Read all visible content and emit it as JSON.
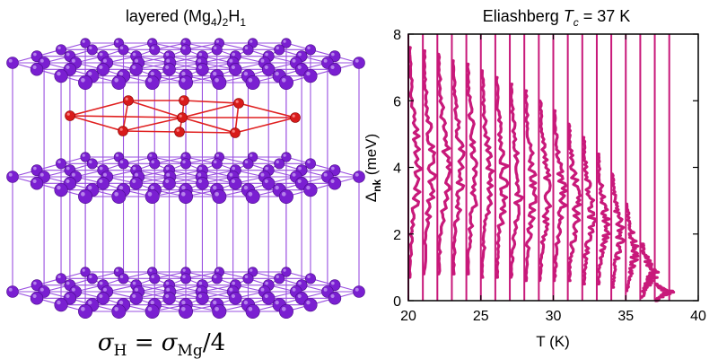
{
  "left_panel": {
    "title": {
      "prefix": "layered (Mg",
      "sub1": "4",
      "mid": ")",
      "sub2": "2",
      "mid2": "H",
      "sub3": "1"
    },
    "formula": {
      "sigma": "σ",
      "h_sub": "H",
      "equals": " = σ",
      "mg_sub": "Mg",
      "tail": "/4"
    },
    "colors": {
      "mg_atom": "#7a1fd1",
      "mg_bond": "#9a4fe0",
      "h_atom": "#d81b1b",
      "h_bond": "#e02020"
    }
  },
  "chart_data": {
    "type": "line",
    "title_prefix": "Eliashberg ",
    "title_var": "T",
    "title_sub": "c",
    "title_suffix": " = 37 K",
    "xlabel": "T (K)",
    "ylabel_main": "Δ",
    "ylabel_sub": "nk",
    "ylabel_unit": " (meV)",
    "xlim": [
      20,
      40
    ],
    "ylim": [
      0,
      8
    ],
    "xticks": [
      "20",
      "25",
      "30",
      "35",
      "40"
    ],
    "xtick_values": [
      20,
      25,
      30,
      35,
      40
    ],
    "yticks": [
      "0",
      "2",
      "4",
      "6",
      "8"
    ],
    "ytick_values": [
      0,
      2,
      4,
      6,
      8
    ],
    "color": "#c8197a",
    "temperatures": [
      20,
      21,
      22,
      23,
      24,
      25,
      26,
      27,
      28,
      29,
      30,
      31,
      32,
      33,
      34,
      35,
      36,
      37,
      38
    ],
    "gap_center": [
      4.0,
      3.95,
      3.9,
      3.85,
      3.8,
      3.7,
      3.6,
      3.5,
      3.35,
      3.2,
      3.0,
      2.8,
      2.55,
      2.25,
      1.9,
      1.4,
      0.8,
      0.25,
      0.0
    ],
    "gap_max": [
      7.6,
      7.5,
      7.4,
      7.2,
      7.1,
      6.9,
      6.7,
      6.5,
      6.3,
      6.0,
      5.7,
      5.3,
      4.9,
      4.4,
      3.8,
      2.9,
      1.7,
      0.5,
      0.0
    ],
    "gap_min": [
      0.7,
      0.8,
      0.8,
      0.8,
      0.8,
      0.7,
      0.7,
      0.7,
      0.6,
      0.6,
      0.6,
      0.6,
      0.5,
      0.5,
      0.4,
      0.3,
      0.1,
      0.0,
      0.0
    ]
  }
}
